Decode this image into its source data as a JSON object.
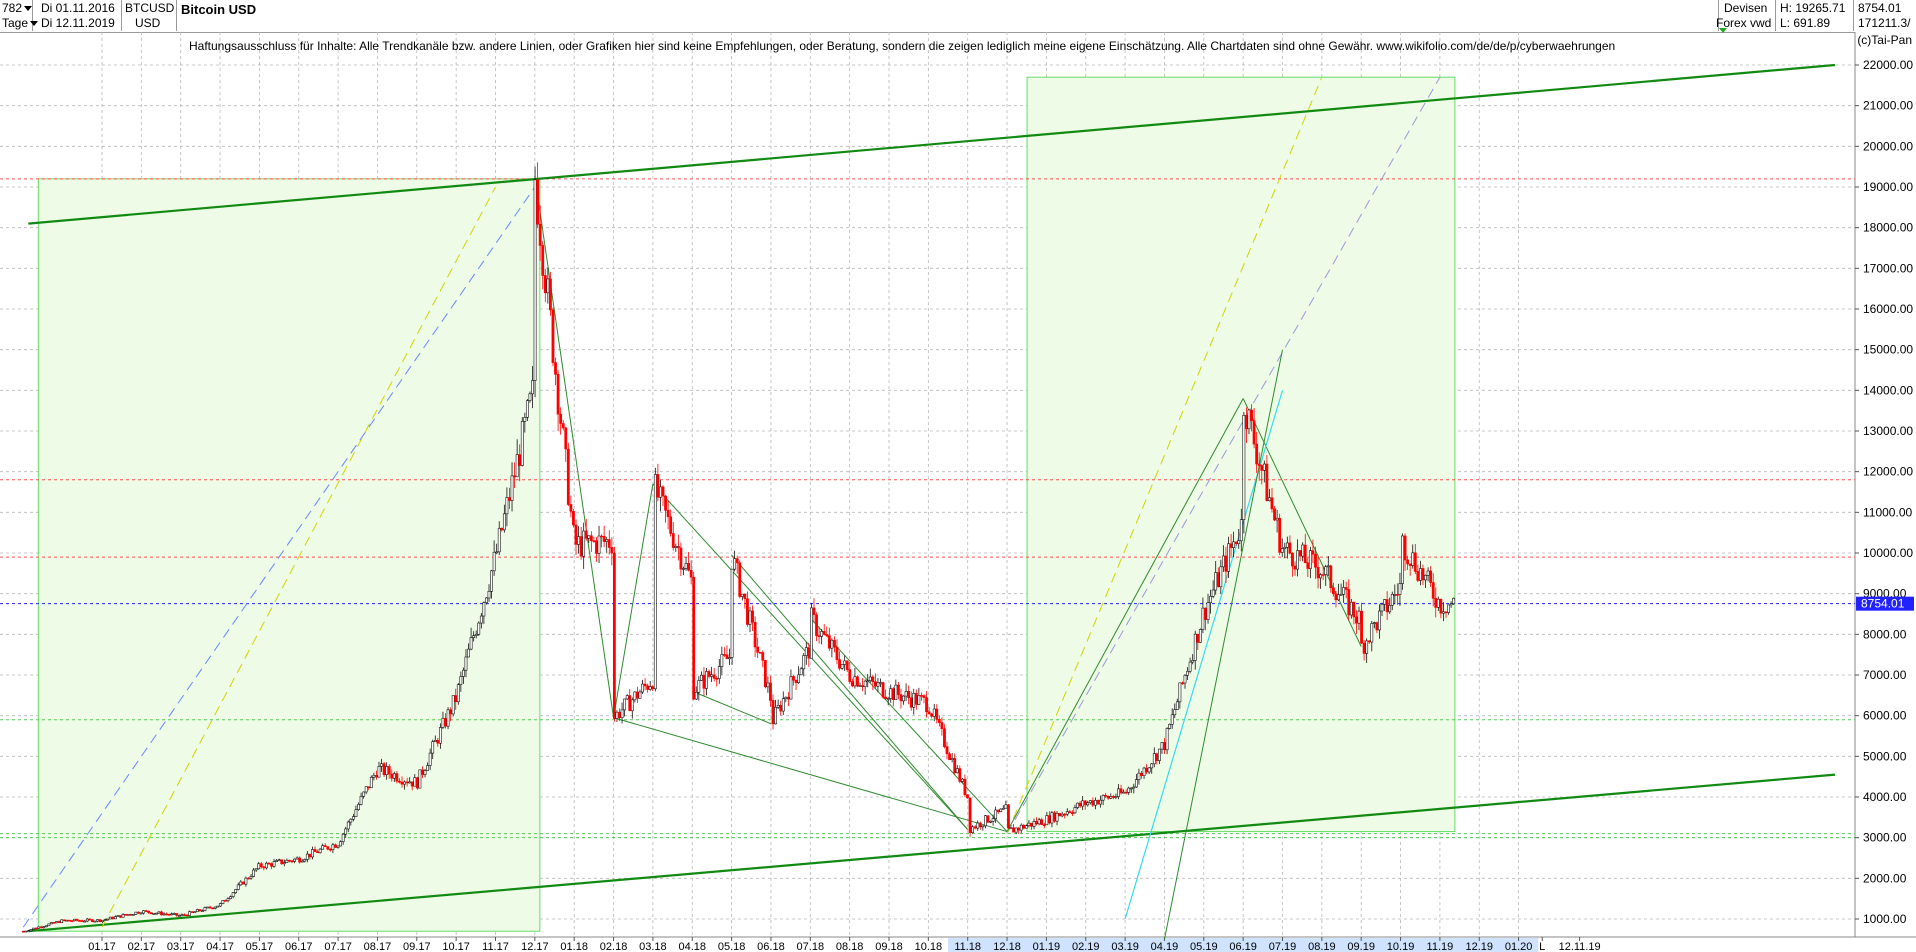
{
  "header": {
    "count": "782",
    "timeframe": "Tage",
    "date_from": "Di 01.11.2016",
    "date_to": "Di 12.11.2019",
    "symbol": "BTCUSD",
    "currency": "USD",
    "title": "Bitcoin USD",
    "source_line1": "Devisen",
    "source_line2": "Forex vwd",
    "high_label": "H: 19265.71",
    "low_label": "L: 691.89",
    "last_value": "8754.01",
    "volume_value": "171211.3/"
  },
  "disclaimer": "Haftungsausschluss für Inhalte: Alle Trendkanäle bzw. andere Linien, oder Grafiken hier sind keine Empfehlungen, oder Beratung, sondern die zeigen lediglich meine eigene Einschätzung. Alle Chartdaten sind ohne Gewähr.  www.wikifolio.com/de/de/p/cyberwaehrungen",
  "copyright": "(c)Tai-Pan",
  "colors": {
    "up": "#111111",
    "down": "#ff0000",
    "grid": "#b8b8b8",
    "current": "#2222ff",
    "channel": "#118a11",
    "box_fill": "#eefbe6",
    "box_stroke": "#66dd66"
  },
  "chart_data": {
    "type": "candlestick",
    "title": "Bitcoin USD",
    "y_axis_side": "right",
    "ylim": [
      500,
      23300
    ],
    "y_ticks": [
      "1000.00",
      "2000.00",
      "3000.00",
      "4000.00",
      "5000.00",
      "6000.00",
      "7000.00",
      "8000.00",
      "9000.00",
      "10000.00",
      "11000.00",
      "12000.00",
      "13000.00",
      "14000.00",
      "15000.00",
      "16000.00",
      "17000.00",
      "18000.00",
      "19000.00",
      "20000.00",
      "21000.00",
      "22000.00"
    ],
    "x_ticks": [
      "01.17",
      "02.17",
      "03.17",
      "04.17",
      "05.17",
      "06.17",
      "07.17",
      "08.17",
      "09.17",
      "10.17",
      "11.17",
      "12.17",
      "01.18",
      "02.18",
      "03.18",
      "04.18",
      "05.18",
      "06.18",
      "07.18",
      "08.18",
      "09.18",
      "10.18",
      "11.18",
      "12.18",
      "01.19",
      "02.19",
      "03.19",
      "04.19",
      "05.19",
      "06.19",
      "07.19",
      "08.19",
      "09.19",
      "10.19",
      "11.19",
      "12.19",
      "01.20",
      "L",
      "12.11.19"
    ],
    "highlight_months": [
      "11.18",
      "12.18",
      "01.19",
      "02.19",
      "03.19",
      "04.19",
      "05.19",
      "06.19",
      "07.19",
      "08.19",
      "09.19",
      "10.19",
      "11.19",
      "12.19",
      "01.20"
    ],
    "current_price": 8754.01,
    "current_label": "8754.01",
    "high": 19265.71,
    "low": 691.89,
    "monthly_path": [
      [
        "11.16",
        700
      ],
      [
        "12.16",
        960
      ],
      [
        "01.17",
        970
      ],
      [
        "02.17",
        1190
      ],
      [
        "03.17",
        1080
      ],
      [
        "04.17",
        1350
      ],
      [
        "05.17",
        2300
      ],
      [
        "06.17",
        2480
      ],
      [
        "07.17",
        2870
      ],
      [
        "08.17",
        4700
      ],
      [
        "09.17",
        4340
      ],
      [
        "10.17",
        6450
      ],
      [
        "11.17",
        9900
      ],
      [
        "12.17",
        14150
      ],
      [
        "01.18",
        10200
      ],
      [
        "02.18",
        10300
      ],
      [
        "03.18",
        6900
      ],
      [
        "04.18",
        9250
      ],
      [
        "05.18",
        7500
      ],
      [
        "06.18",
        6400
      ],
      [
        "07.18",
        7700
      ],
      [
        "08.18",
        7000
      ],
      [
        "09.18",
        6600
      ],
      [
        "10.18",
        6300
      ],
      [
        "11.18",
        4000
      ],
      [
        "12.18",
        3700
      ],
      [
        "01.19",
        3450
      ],
      [
        "02.19",
        3850
      ],
      [
        "03.19",
        4100
      ],
      [
        "04.19",
        5300
      ],
      [
        "05.19",
        8550
      ],
      [
        "06.19",
        10800
      ],
      [
        "07.19",
        10100
      ],
      [
        "08.19",
        9600
      ],
      [
        "09.19",
        8300
      ],
      [
        "10.19",
        9200
      ],
      [
        "11.19",
        8754
      ]
    ],
    "key_points": [
      [
        "12.17",
        19265.71
      ],
      [
        "02.18",
        5950
      ],
      [
        "03.18",
        11700
      ],
      [
        "04.18",
        6600
      ],
      [
        "05.18",
        9950
      ],
      [
        "06.18",
        5800
      ],
      [
        "07.18",
        8400
      ],
      [
        "11.18",
        3200
      ],
      [
        "12.18",
        3150
      ],
      [
        "06.19",
        13800
      ],
      [
        "09.19",
        7700
      ],
      [
        "10.19",
        10350
      ]
    ],
    "horizontal_levels": [
      3000,
      3100,
      5900,
      8754.01,
      9900,
      11800,
      19200
    ]
  }
}
